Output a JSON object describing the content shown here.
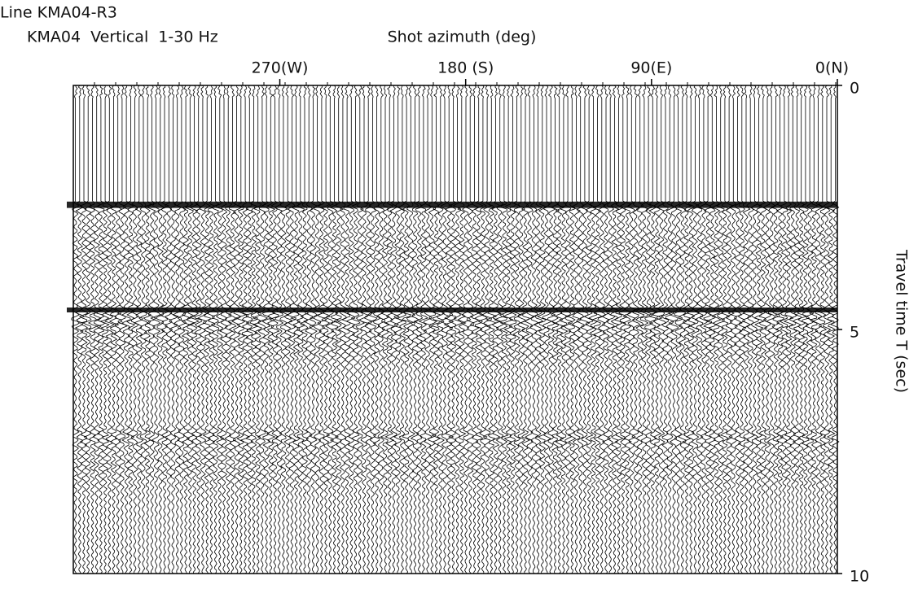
{
  "chart_data": {
    "type": "seismic",
    "title": "Line KMA04-R3",
    "subtitle": "KMA04  Vertical  1-30 Hz",
    "x_label": "Shot azimuth (deg)",
    "y_label": "Travel time T (sec)",
    "xlim": [
      370,
      0
    ],
    "xticks": [
      {
        "value": 270,
        "label": "270(W)"
      },
      {
        "value": 180,
        "label": "180 (S)"
      },
      {
        "value": 90,
        "label": "90(E)"
      },
      {
        "value": 0,
        "label": "0(N)"
      }
    ],
    "ylim": [
      0,
      10
    ],
    "yticks": [
      0,
      5,
      10
    ],
    "color": "#000000"
  }
}
